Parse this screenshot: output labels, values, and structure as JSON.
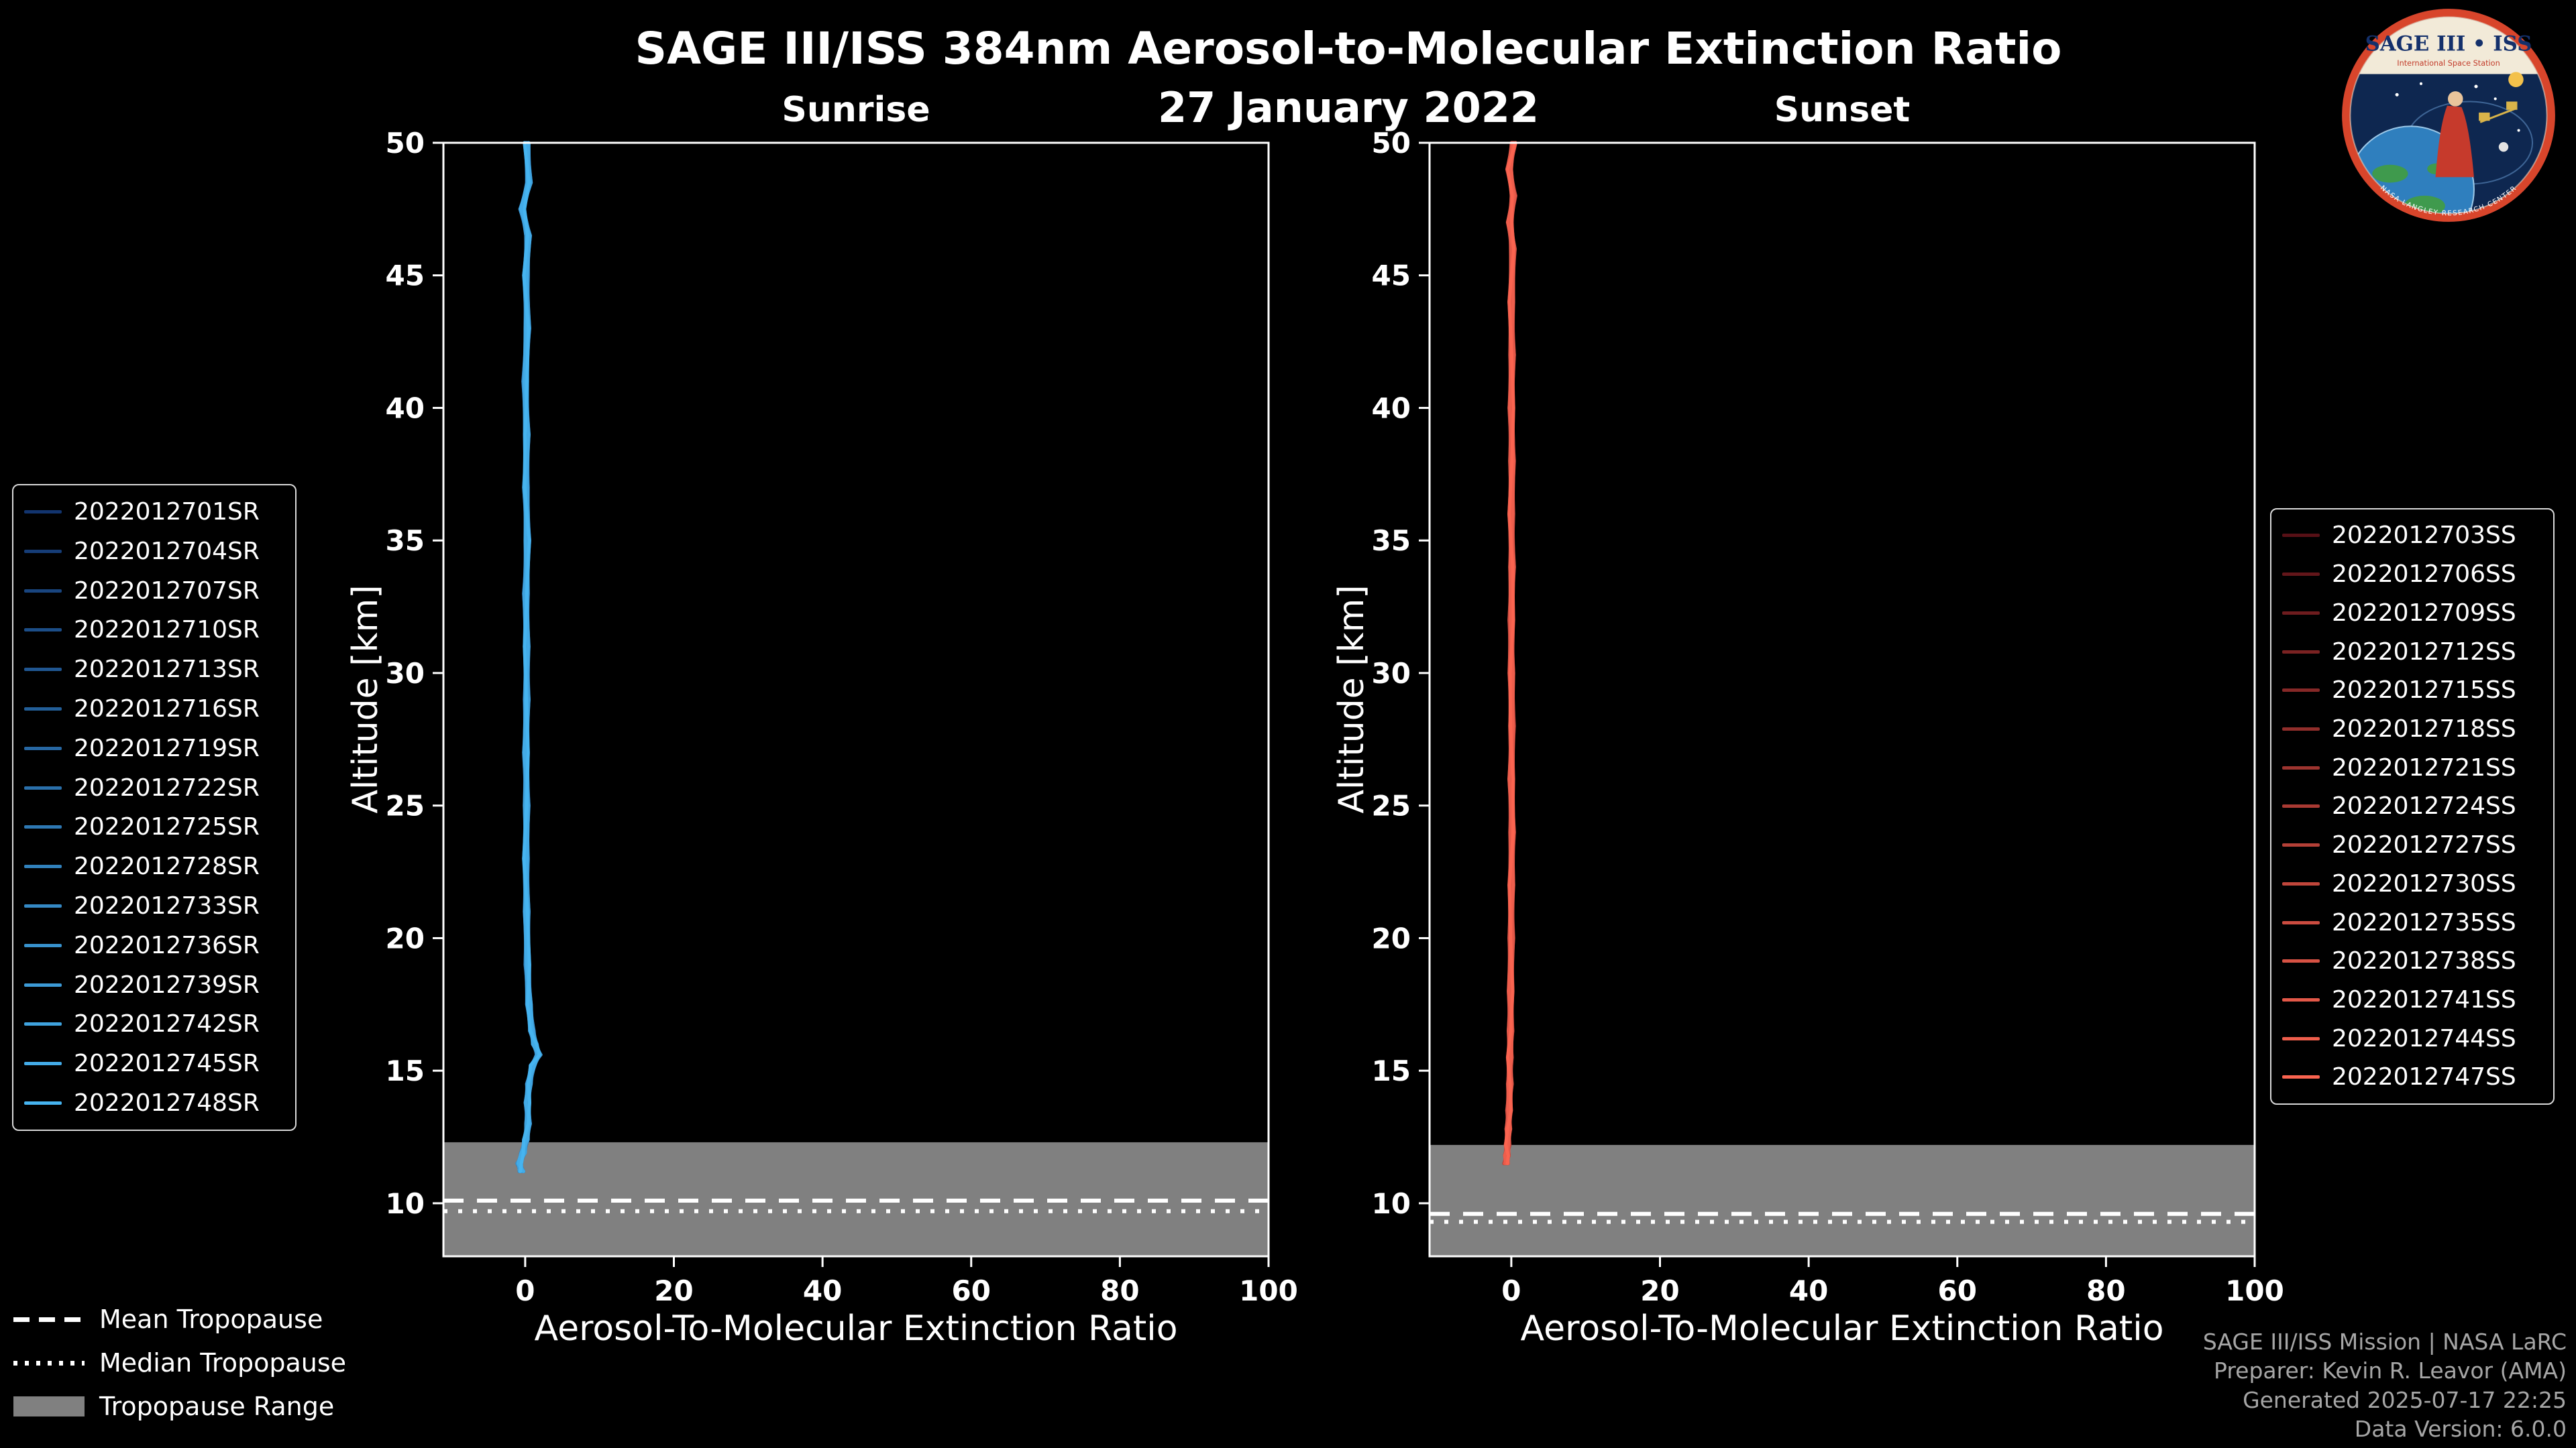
{
  "header": {
    "title": "SAGE III/ISS 384nm Aerosol-to-Molecular Extinction Ratio",
    "date": "27 January 2022"
  },
  "logo": {
    "title_text": "SAGE III • ISS",
    "subtitle_text": "International Space Station",
    "ring_text": "NASA LANGLEY RESEARCH CENTER",
    "ring_color": "#d8452b",
    "field_color": "#0e2750",
    "banner_color": "#f2ead8"
  },
  "tropopause_legend": {
    "items": [
      {
        "label": "Mean Tropopause",
        "style": "dashed"
      },
      {
        "label": "Median Tropopause",
        "style": "dotted"
      },
      {
        "label": "Tropopause Range",
        "style": "band",
        "color": "#808080"
      }
    ]
  },
  "footer": {
    "lines": [
      "SAGE III/ISS Mission | NASA LaRC",
      "Preparer: Kevin R. Leavor (AMA)",
      "Generated 2025-07-17 22:25",
      "Data Version: 6.0.0"
    ]
  },
  "chart_data": [
    {
      "type": "line",
      "panel_title": "Sunrise",
      "xlabel": "Aerosol-To-Molecular Extinction Ratio",
      "ylabel": "Altitude [km]",
      "xlim": [
        -11,
        100
      ],
      "ylim": [
        8,
        50
      ],
      "xticks": [
        0,
        20,
        40,
        60,
        80,
        100
      ],
      "yticks": [
        10,
        15,
        20,
        25,
        30,
        35,
        40,
        45,
        50
      ],
      "grid": false,
      "legend_position": "outside-left",
      "series": [
        {
          "name": "2022012701SR",
          "color": "#12346E"
        },
        {
          "name": "2022012704SR",
          "color": "#163D77"
        },
        {
          "name": "2022012707SR",
          "color": "#19457F"
        },
        {
          "name": "2022012710SR",
          "color": "#1C4E88"
        },
        {
          "name": "2022012713SR",
          "color": "#205691"
        },
        {
          "name": "2022012716SR",
          "color": "#235F99"
        },
        {
          "name": "2022012719SR",
          "color": "#2767A2"
        },
        {
          "name": "2022012722SR",
          "color": "#2A70AB"
        },
        {
          "name": "2022012725SR",
          "color": "#2E78B3"
        },
        {
          "name": "2022012728SR",
          "color": "#3181BC"
        },
        {
          "name": "2022012733SR",
          "color": "#3589C5"
        },
        {
          "name": "2022012736SR",
          "color": "#3892CD"
        },
        {
          "name": "2022012739SR",
          "color": "#3C9AD6"
        },
        {
          "name": "2022012742SR",
          "color": "#3FA3DF"
        },
        {
          "name": "2022012745SR",
          "color": "#43ABE7"
        },
        {
          "name": "2022012748SR",
          "color": "#46B4F0"
        }
      ],
      "representative_profile": {
        "note": "All 16 sunrise profiles overlap near ratio 0 from ~11.2 km to 50 km, with a small aerosol enhancement near 15.5 km",
        "altitude_km": [
          50,
          48.5,
          47.5,
          46.5,
          45,
          43,
          41,
          39,
          37,
          35,
          33,
          31,
          29,
          27,
          25,
          23,
          21,
          19,
          17.5,
          16.5,
          16,
          15.6,
          15.2,
          14.5,
          13.8,
          13,
          12.4,
          11.9,
          11.5,
          11.2
        ],
        "ratio": [
          0.2,
          0.5,
          -0.4,
          0.4,
          0.1,
          0.3,
          0.0,
          0.2,
          0.1,
          0.3,
          0.1,
          0.2,
          0.2,
          0.1,
          0.2,
          0.1,
          0.2,
          0.3,
          0.5,
          0.9,
          1.3,
          1.8,
          1.0,
          0.5,
          0.3,
          0.4,
          0.1,
          -0.3,
          -0.8,
          -0.5
        ]
      },
      "tropopause": {
        "mean_km": 10.1,
        "median_km": 9.7,
        "range_km": [
          8,
          12.3
        ]
      }
    },
    {
      "type": "line",
      "panel_title": "Sunset",
      "xlabel": "Aerosol-To-Molecular Extinction Ratio",
      "ylabel": "Altitude [km]",
      "xlim": [
        -11,
        100
      ],
      "ylim": [
        8,
        50
      ],
      "xticks": [
        0,
        20,
        40,
        60,
        80,
        100
      ],
      "yticks": [
        10,
        15,
        20,
        25,
        30,
        35,
        40,
        45,
        50
      ],
      "grid": false,
      "legend_position": "outside-right",
      "series": [
        {
          "name": "2022012703SS",
          "color": "#571016"
        },
        {
          "name": "2022012706SS",
          "color": "#63161A"
        },
        {
          "name": "2022012709SS",
          "color": "#6E1C1E"
        },
        {
          "name": "2022012712SS",
          "color": "#7A2222"
        },
        {
          "name": "2022012715SS",
          "color": "#862827"
        },
        {
          "name": "2022012718SS",
          "color": "#912E2B"
        },
        {
          "name": "2022012721SS",
          "color": "#9D342F"
        },
        {
          "name": "2022012724SS",
          "color": "#A93A33"
        },
        {
          "name": "2022012727SS",
          "color": "#B44037"
        },
        {
          "name": "2022012730SS",
          "color": "#C0463B"
        },
        {
          "name": "2022012735SS",
          "color": "#CC4C40"
        },
        {
          "name": "2022012738SS",
          "color": "#D75244"
        },
        {
          "name": "2022012741SS",
          "color": "#E35848"
        },
        {
          "name": "2022012744SS",
          "color": "#EE5E4C"
        },
        {
          "name": "2022012747SS",
          "color": "#FA6450"
        }
      ],
      "representative_profile": {
        "note": "All 15 sunset profiles overlap near ratio 0 from ~11.5 km to 50 km",
        "altitude_km": [
          50,
          49,
          48,
          47,
          46,
          44,
          42,
          40,
          38,
          36,
          34,
          32,
          30,
          28,
          26,
          24,
          22,
          20,
          18,
          16.5,
          15.5,
          14.5,
          13.5,
          12.8,
          12.2,
          11.8,
          11.5
        ],
        "ratio": [
          0.3,
          -0.3,
          0.3,
          -0.2,
          0.2,
          0.0,
          0.1,
          0.0,
          0.1,
          0.0,
          0.1,
          0.0,
          0.0,
          0.1,
          0.0,
          0.1,
          0.0,
          0.0,
          -0.1,
          -0.1,
          -0.2,
          -0.2,
          -0.3,
          -0.4,
          -0.5,
          -0.6,
          -0.7
        ]
      },
      "tropopause": {
        "mean_km": 9.6,
        "median_km": 9.3,
        "range_km": [
          8,
          12.2
        ]
      }
    }
  ]
}
